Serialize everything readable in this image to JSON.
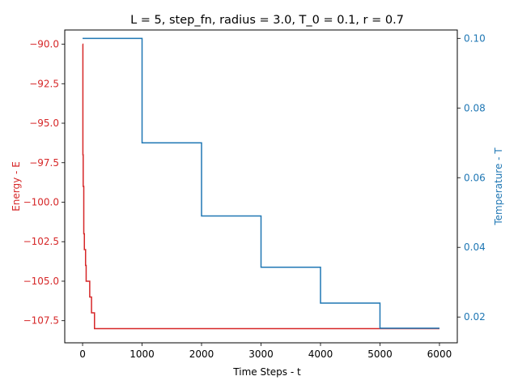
{
  "chart_data": {
    "type": "line",
    "title": "L = 5, step_fn, radius = 3.0, T_0 = 0.1, r = 0.7",
    "xlabel": "Time Steps - t",
    "x_ticks": [
      0,
      1000,
      2000,
      3000,
      4000,
      5000,
      6000
    ],
    "xlim": [
      -300,
      6300
    ],
    "left_axis": {
      "label": "Energy - E",
      "color": "#d62728",
      "ylim": [
        -108.9,
        -89.1
      ],
      "ticks": [
        -90.0,
        -92.5,
        -95.0,
        -97.5,
        -100.0,
        -102.5,
        -105.0,
        -107.5
      ],
      "tick_labels": [
        "−90.0",
        "−92.5",
        "−95.0",
        "−97.5",
        "−100.0",
        "−102.5",
        "−105.0",
        "−107.5"
      ]
    },
    "right_axis": {
      "label": "Temperature - T",
      "color": "#1f77b4",
      "ylim": [
        0.0126,
        0.1024
      ],
      "ticks": [
        0.02,
        0.04,
        0.06,
        0.08,
        0.1
      ],
      "tick_labels": [
        "0.02",
        "0.04",
        "0.06",
        "0.08",
        "0.10"
      ]
    },
    "series": [
      {
        "axis": "left",
        "color": "#d62728",
        "step": true,
        "x": [
          0,
          5,
          10,
          20,
          30,
          40,
          50,
          60,
          70,
          80,
          100,
          120,
          150,
          180,
          200,
          6000
        ],
        "y": [
          -90.0,
          -97.0,
          -99.0,
          -102.0,
          -103.0,
          -103.0,
          -104.0,
          -105.0,
          -105.0,
          -105.0,
          -105.0,
          -106.0,
          -107.0,
          -107.0,
          -108.0,
          -108.0
        ]
      },
      {
        "axis": "right",
        "color": "#1f77b4",
        "step": true,
        "x": [
          0,
          1000,
          2000,
          3000,
          4000,
          5000,
          6000
        ],
        "y": [
          0.1,
          0.07,
          0.049,
          0.0343,
          0.024,
          0.0168,
          0.0168
        ]
      }
    ]
  }
}
